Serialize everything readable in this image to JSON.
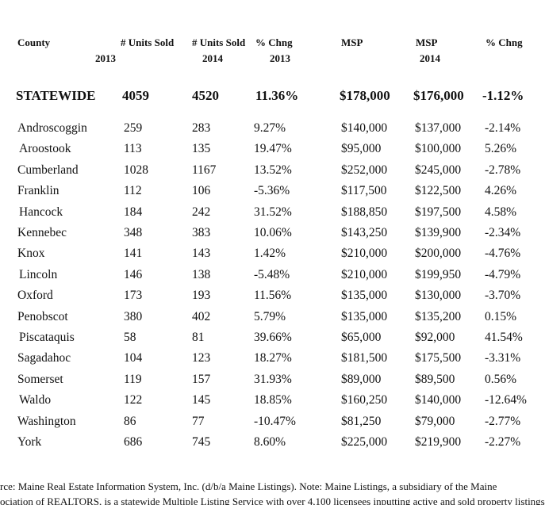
{
  "header": [
    {
      "text": "County"
    },
    {
      "text": "# Units Sold",
      "sub": "2013"
    },
    {
      "text": "# Units Sold",
      "sub": "2014"
    },
    {
      "text": "% Chng",
      "sub": "2013"
    },
    {
      "text": "MSP"
    },
    {
      "text": "MSP",
      "sub": "2014"
    },
    {
      "text": "% Chng"
    }
  ],
  "statewide": [
    "STATEWIDE",
    "4059",
    "4520",
    "11.36%",
    "$178,000",
    "$176,000",
    "-1.12%"
  ],
  "rows": [
    [
      "Androscoggin",
      "259",
      "283",
      "9.27%",
      "$140,000",
      "$137,000",
      "-2.14%"
    ],
    [
      "Aroostook",
      "113",
      "135",
      "19.47%",
      "$95,000",
      "$100,000",
      "5.26%"
    ],
    [
      "Cumberland",
      "1028",
      "1167",
      "13.52%",
      "$252,000",
      "$245,000",
      "-2.78%"
    ],
    [
      "Franklin",
      "112",
      "106",
      "-5.36%",
      "$117,500",
      "$122,500",
      "4.26%"
    ],
    [
      "Hancock",
      "184",
      "242",
      "31.52%",
      "$188,850",
      "$197,500",
      "4.58%"
    ],
    [
      "Kennebec",
      "348",
      "383",
      "10.06%",
      "$143,250",
      "$139,900",
      "-2.34%"
    ],
    [
      "Knox",
      "141",
      "143",
      "1.42%",
      "$210,000",
      "$200,000",
      "-4.76%"
    ],
    [
      "Lincoln",
      "146",
      "138",
      "-5.48%",
      "$210,000",
      "$199,950",
      "-4.79%"
    ],
    [
      "Oxford",
      "173",
      "193",
      "11.56%",
      "$135,000",
      "$130,000",
      "-3.70%"
    ],
    [
      "Penobscot",
      "380",
      "402",
      "5.79%",
      "$135,000",
      "$135,200",
      "0.15%"
    ],
    [
      "Piscataquis",
      "58",
      "81",
      "39.66%",
      "$65,000",
      "$92,000",
      "41.54%"
    ],
    [
      "Sagadahoc",
      "104",
      "123",
      "18.27%",
      "$181,500",
      "$175,500",
      "-3.31%"
    ],
    [
      "Somerset",
      "119",
      "157",
      "31.93%",
      "$89,000",
      "$89,500",
      "0.56%"
    ],
    [
      "Waldo",
      "122",
      "145",
      "18.85%",
      "$160,250",
      "$140,000",
      "-12.64%"
    ],
    [
      "Washington",
      "86",
      "77",
      "-10.47%",
      "$81,250",
      "$79,000",
      "-2.77%"
    ],
    [
      "York",
      "686",
      "745",
      "8.60%",
      "$225,000",
      "$219,900",
      "-2.27%"
    ]
  ],
  "footer": [
    "rce: Maine Real Estate Information System, Inc. (d/b/a Maine Listings).  Note: Maine Listings, a subsidiary of the Maine",
    "ociation of REALTORS, is a statewide Multiple Listing Service with over 4,100 licensees inputting active and sold property listings"
  ]
}
